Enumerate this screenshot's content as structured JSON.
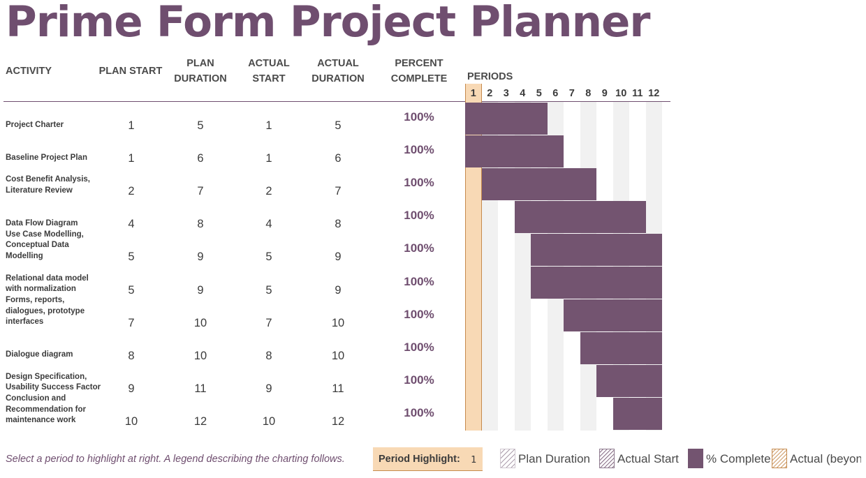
{
  "title": "Prime Form Project Planner",
  "headers": {
    "activity": "ACTIVITY",
    "plan_start": "PLAN START",
    "plan_duration": [
      "PLAN",
      "DURATION"
    ],
    "actual_start": [
      "ACTUAL",
      "START"
    ],
    "actual_duration": [
      "ACTUAL",
      "DURATION"
    ],
    "percent_complete": [
      "PERCENT",
      "COMPLETE"
    ],
    "periods": "PERIODS"
  },
  "periods": [
    "1",
    "2",
    "3",
    "4",
    "5",
    "6",
    "7",
    "8",
    "9",
    "10",
    "11",
    "12"
  ],
  "highlighted_period": 1,
  "rows": [
    {
      "activity": [
        "Project Charter"
      ],
      "plan_start": "1",
      "plan_duration": "5",
      "actual_start": "1",
      "actual_duration": "5",
      "percent": "100%"
    },
    {
      "activity": [
        "Baseline Project Plan"
      ],
      "plan_start": "1",
      "plan_duration": "6",
      "actual_start": "1",
      "actual_duration": "6",
      "percent": "100%"
    },
    {
      "activity": [
        "Cost Benefit Analysis,",
        "Literature Review"
      ],
      "plan_start": "2",
      "plan_duration": "7",
      "actual_start": "2",
      "actual_duration": "7",
      "percent": "100%"
    },
    {
      "activity": [
        "Data Flow Diagram"
      ],
      "plan_start": "4",
      "plan_duration": "8",
      "actual_start": "4",
      "actual_duration": "8",
      "percent": "100%"
    },
    {
      "activity": [
        "Use Case Modelling,",
        "Conceptual Data",
        "Modelling"
      ],
      "plan_start": "5",
      "plan_duration": "9",
      "actual_start": "5",
      "actual_duration": "9",
      "percent": "100%"
    },
    {
      "activity": [
        "Relational data model",
        "with normalization"
      ],
      "plan_start": "5",
      "plan_duration": "9",
      "actual_start": "5",
      "actual_duration": "9",
      "percent": "100%"
    },
    {
      "activity": [
        "Forms, reports,",
        "dialogues, prototype",
        "interfaces"
      ],
      "plan_start": "7",
      "plan_duration": "10",
      "actual_start": "7",
      "actual_duration": "10",
      "percent": "100%"
    },
    {
      "activity": [
        "Dialogue diagram"
      ],
      "plan_start": "8",
      "plan_duration": "10",
      "actual_start": "8",
      "actual_duration": "10",
      "percent": "100%"
    },
    {
      "activity": [
        "Design Specification,",
        "Usability Success Factor"
      ],
      "plan_start": "9",
      "plan_duration": "11",
      "actual_start": "9",
      "actual_duration": "11",
      "percent": "100%"
    },
    {
      "activity": [
        "Conclusion and",
        "Recommendation for",
        "maintenance work"
      ],
      "plan_start": "10",
      "plan_duration": "12",
      "actual_start": "10",
      "actual_duration": "12",
      "percent": "100%"
    }
  ],
  "footer": {
    "note": "Select a period to highlight at right.  A legend describing the charting follows.",
    "period_highlight_label": "Period Highlight:",
    "period_highlight_value": "1"
  },
  "legend": [
    "Plan Duration",
    "Actual Start",
    "% Complete",
    "Actual (beyond plan)"
  ],
  "colors": {
    "accent": "#6f4e6f",
    "bar": "#735470",
    "highlight": "#f8d9b5",
    "highlight_border": "#c58a4d",
    "stripe": "#f1f1f1"
  }
}
